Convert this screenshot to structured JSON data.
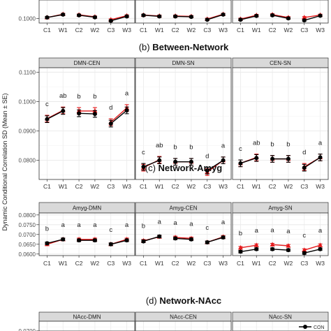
{
  "chart_data": {
    "type": "line",
    "ylabel": "Dynamic Conditional Correlation SD (Mean ± SE)",
    "x": [
      "C1",
      "W1",
      "C2",
      "W2",
      "C3",
      "W3"
    ],
    "series_colors": {
      "black": "#000000",
      "red": "#e41a1c"
    },
    "legend": {
      "label": "CON",
      "placement": "bottom-right"
    },
    "sections": [
      {
        "title_prefix": "",
        "title": "",
        "ylim": [
          0.098,
          0.1115
        ],
        "yticks": [
          0.1
        ],
        "panels": [
          {
            "strip": "",
            "letters": [],
            "black": [
              0.1005,
              0.1018,
              0.1015,
              0.1006,
              0.099,
              0.101
            ],
            "red": [
              0.1005,
              0.102,
              0.1017,
              0.1008,
              0.0995,
              0.1013
            ]
          },
          {
            "strip": "",
            "letters": [],
            "black": [
              0.1015,
              0.101,
              0.101,
              0.1008,
              0.0995,
              0.1018
            ],
            "red": [
              0.1016,
              0.1012,
              0.1012,
              0.101,
              0.0998,
              0.102
            ]
          },
          {
            "strip": "",
            "letters": [],
            "black": [
              0.0995,
              0.1012,
              0.1015,
              0.1001,
              0.0992,
              0.1013
            ],
            "red": [
              0.0998,
              0.1015,
              0.1018,
              0.1005,
              0.1005,
              0.1016
            ]
          }
        ]
      },
      {
        "title_prefix": "(b)",
        "title": "Between-Network",
        "ylim": [
          0.0735,
          0.1115
        ],
        "yticks": [
          0.08,
          0.09,
          0.1,
          0.11
        ],
        "panels": [
          {
            "strip": "DMN-CEN",
            "letters": [
              "c",
              "ab",
              "b",
              "b",
              "d",
              "a"
            ],
            "black": [
              0.094,
              0.0968,
              0.096,
              0.0958,
              0.0925,
              0.097
            ],
            "red": [
              0.0942,
              0.097,
              0.0968,
              0.0968,
              0.093,
              0.0978
            ]
          },
          {
            "strip": "DMN-SN",
            "letters": [
              "c",
              "ab",
              "b",
              "b",
              "d",
              "a"
            ],
            "black": [
              0.0778,
              0.08,
              0.0795,
              0.0795,
              0.0765,
              0.08
            ],
            "red": [
              0.0775,
              0.0802,
              0.0795,
              0.0795,
              0.076,
              0.08
            ]
          },
          {
            "strip": "CEN-SN",
            "letters": [
              "c",
              "ab",
              "b",
              "b",
              "d",
              "a"
            ],
            "black": [
              0.079,
              0.0808,
              0.0805,
              0.0805,
              0.0775,
              0.081
            ],
            "red": [
              0.079,
              0.081,
              0.0805,
              0.0805,
              0.0778,
              0.081
            ]
          }
        ]
      },
      {
        "title_prefix": "(c)",
        "title": "Network-Amyg",
        "ylim": [
          0.0592,
          0.081
        ],
        "yticks": [
          0.06,
          0.065,
          0.07,
          0.075,
          0.08
        ],
        "panels": [
          {
            "strip": "Amyg-DMN",
            "letters": [
              "b",
              "a",
              "a",
              "a",
              "c",
              "a"
            ],
            "black": [
              0.0655,
              0.0675,
              0.067,
              0.067,
              0.065,
              0.067
            ],
            "red": [
              0.065,
              0.0675,
              0.0675,
              0.0675,
              0.065,
              0.0675
            ]
          },
          {
            "strip": "Amyg-CEN",
            "letters": [
              "b",
              "a",
              "a",
              "a",
              "c",
              "a"
            ],
            "black": [
              0.0665,
              0.069,
              0.068,
              0.0675,
              0.066,
              0.0685
            ],
            "red": [
              0.0668,
              0.0688,
              0.0685,
              0.068,
              0.066,
              0.0688
            ]
          },
          {
            "strip": "Amyg-SN",
            "letters": [
              "b",
              "a",
              "a",
              "a",
              "c",
              "a"
            ],
            "black": [
              0.0612,
              0.0625,
              0.0625,
              0.062,
              0.0605,
              0.0625
            ],
            "red": [
              0.0632,
              0.0645,
              0.0648,
              0.0642,
              0.062,
              0.0645
            ]
          }
        ]
      },
      {
        "title_prefix": "(d)",
        "title": "Network-NAcc",
        "ylim": [
          0.066,
          0.0712
        ],
        "yticks": [
          0.07
        ],
        "panels": [
          {
            "strip": "NAcc-DMN",
            "letters": [],
            "black": [],
            "red": []
          },
          {
            "strip": "NAcc-CEN",
            "letters": [],
            "black": [],
            "red": []
          },
          {
            "strip": "NAcc-SN",
            "letters": [],
            "black": [],
            "red": []
          }
        ]
      }
    ]
  }
}
